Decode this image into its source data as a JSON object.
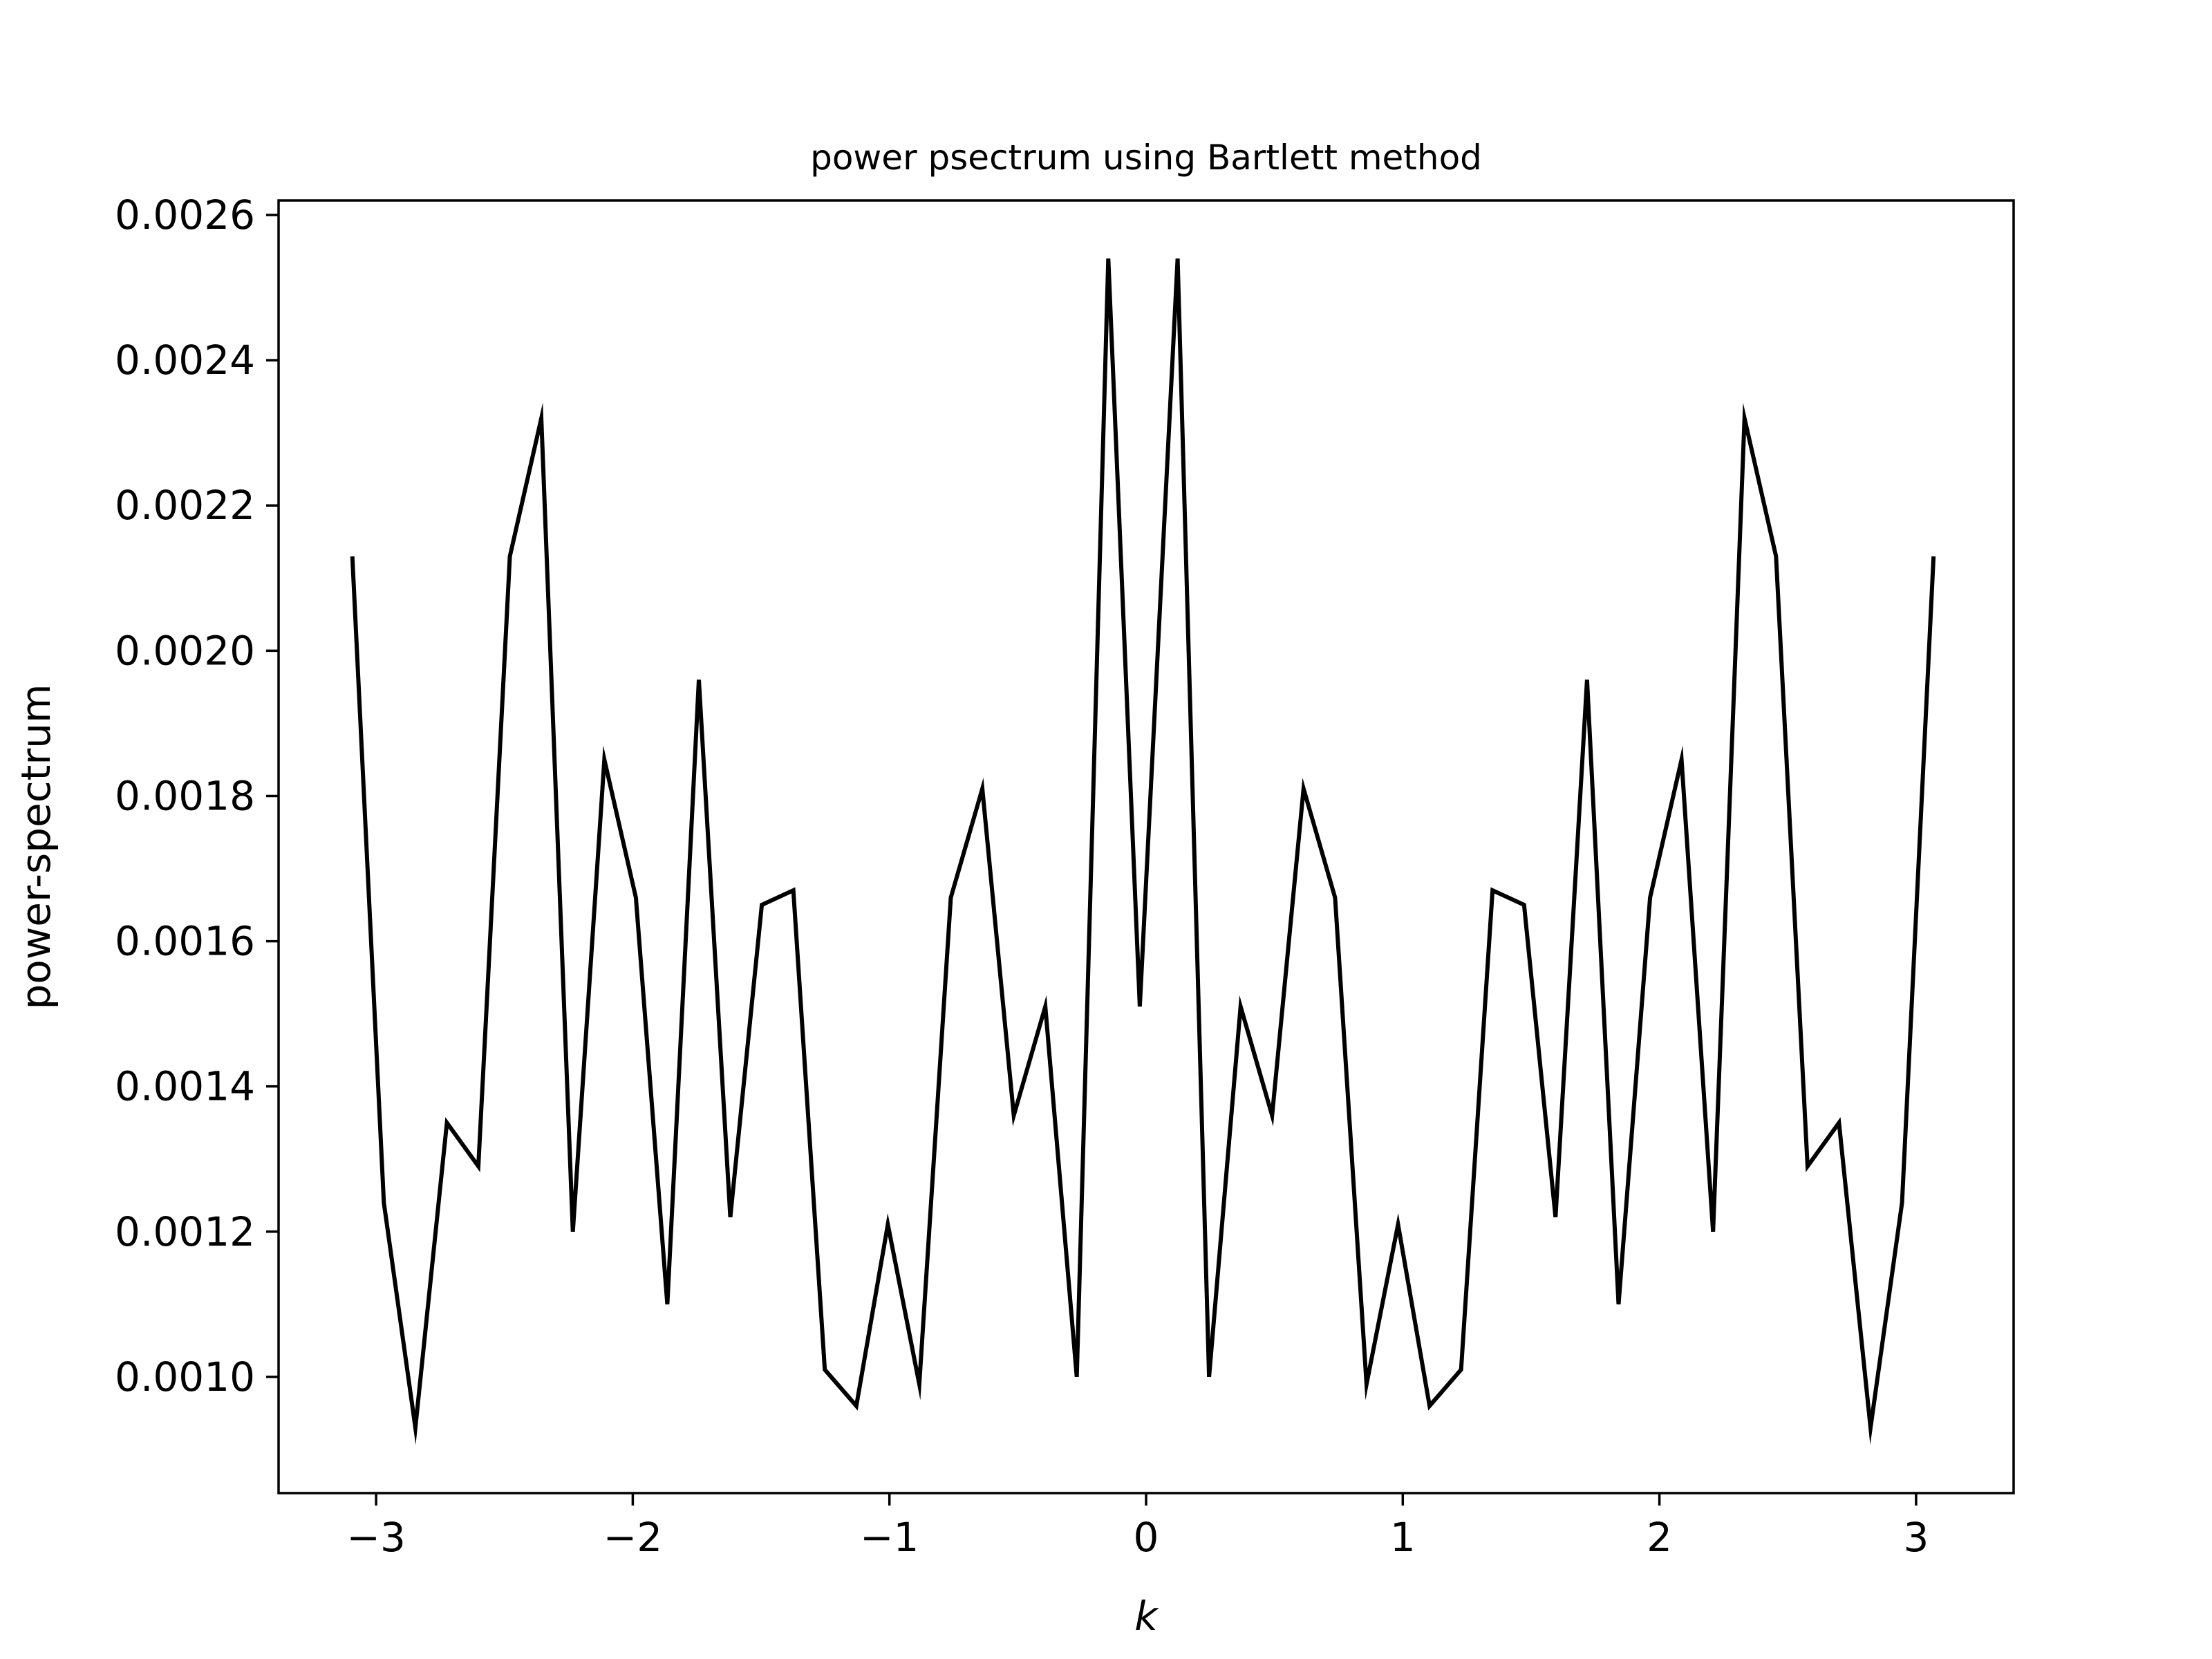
{
  "chart_data": {
    "type": "line",
    "title": "power psectrum using Bartlett method",
    "xlabel": "k",
    "ylabel": "power-spectrum",
    "xlim": [
      -3.38,
      3.38
    ],
    "ylim": [
      0.00084,
      0.00262
    ],
    "grid": false,
    "line_color": "#000000",
    "xticks": [
      {
        "value": -3,
        "label": "−3"
      },
      {
        "value": -2,
        "label": "−2"
      },
      {
        "value": -1,
        "label": "−1"
      },
      {
        "value": 0,
        "label": "0"
      },
      {
        "value": 1,
        "label": "1"
      },
      {
        "value": 2,
        "label": "2"
      },
      {
        "value": 3,
        "label": "3"
      }
    ],
    "yticks": [
      {
        "value": 0.001,
        "label": "0.0010"
      },
      {
        "value": 0.0012,
        "label": "0.0012"
      },
      {
        "value": 0.0014,
        "label": "0.0014"
      },
      {
        "value": 0.0016,
        "label": "0.0016"
      },
      {
        "value": 0.0018,
        "label": "0.0018"
      },
      {
        "value": 0.002,
        "label": "0.0020"
      },
      {
        "value": 0.0022,
        "label": "0.0022"
      },
      {
        "value": 0.0024,
        "label": "0.0024"
      },
      {
        "value": 0.0026,
        "label": "0.0026"
      }
    ],
    "series": [
      {
        "x": [
          -3.0925,
          -2.9698,
          -2.8471,
          -2.7243,
          -2.6016,
          -2.4789,
          -2.3562,
          -2.2335,
          -2.1108,
          -1.988,
          -1.8653,
          -1.7426,
          -1.6199,
          -1.4972,
          -1.3744,
          -1.2517,
          -1.129,
          -1.0063,
          -0.8836,
          -0.7609,
          -0.6381,
          -0.5154,
          -0.3927,
          -0.27,
          -0.1473,
          -0.0245,
          0.1227,
          0.2454,
          0.3681,
          0.4909,
          0.6136,
          0.7363,
          0.859,
          0.9817,
          1.1045,
          1.2272,
          1.3499,
          1.4726,
          1.5953,
          1.7181,
          1.8408,
          1.9635,
          2.0862,
          2.2089,
          2.3316,
          2.4544,
          2.5771,
          2.6998,
          2.8225,
          2.9452,
          3.068
        ],
        "values": [
          0.00213,
          0.00124,
          0.00093,
          0.00135,
          0.00129,
          0.00213,
          0.00232,
          0.0012,
          0.00185,
          0.00166,
          0.0011,
          0.00196,
          0.00122,
          0.00165,
          0.00167,
          0.00101,
          0.00096,
          0.00121,
          0.00099,
          0.00166,
          0.00181,
          0.00136,
          0.00151,
          0.001,
          0.00254,
          0.00151,
          0.00254,
          0.001,
          0.00151,
          0.00136,
          0.00181,
          0.00166,
          0.00099,
          0.00121,
          0.00096,
          0.00101,
          0.00167,
          0.00165,
          0.00122,
          0.00196,
          0.0011,
          0.00166,
          0.00185,
          0.0012,
          0.00232,
          0.00213,
          0.00129,
          0.00135,
          0.00093,
          0.00124,
          0.00213
        ]
      }
    ]
  }
}
